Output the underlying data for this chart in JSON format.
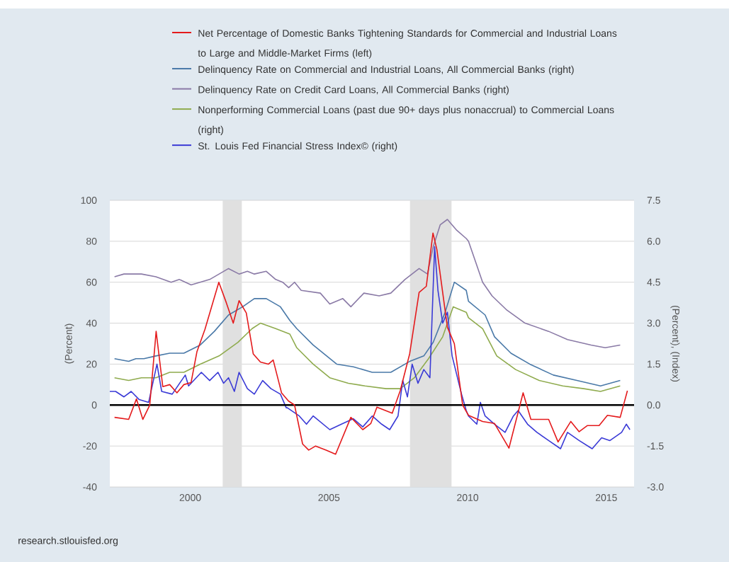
{
  "chart_data": {
    "type": "line",
    "ylabel": "(Percent)",
    "y2label": "(Percent), (Index)",
    "xlim": [
      1997.1,
      2016.0
    ],
    "xticks": [
      2000,
      2005,
      2010,
      2015
    ],
    "ylim": [
      -40,
      100
    ],
    "yticks": [
      -40,
      -20,
      0,
      20,
      40,
      60,
      80,
      100
    ],
    "y2lim": [
      -3.0,
      7.5
    ],
    "y2ticks": [
      {
        "value": -3.0,
        "label": "-3.0"
      },
      {
        "value": -1.5,
        "label": "-1.5"
      },
      {
        "value": 0.0,
        "label": "0.0"
      },
      {
        "value": 1.5,
        "label": "1.5"
      },
      {
        "value": 3.0,
        "label": "3.0"
      },
      {
        "value": 4.5,
        "label": "4.5"
      },
      {
        "value": 6.0,
        "label": "6.0"
      },
      {
        "value": 7.5,
        "label": "7.5"
      }
    ],
    "grid": "y",
    "legend": "top",
    "series": [
      {
        "name": "Net Percentage of Domestic Banks Tightening Standards for Commercial and Industrial Loans to Large and Middle-Market Firms (left)",
        "color": "#e41a1c",
        "x": [
          1997.27,
          1997.78,
          1998.06,
          1998.29,
          1998.54,
          1998.77,
          1999.01,
          1999.26,
          1999.52,
          1999.77,
          2000.03,
          2000.24,
          2000.53,
          2001.03,
          2001.3,
          2001.55,
          2001.76,
          2002.02,
          2002.27,
          2002.53,
          2002.82,
          2002.99,
          2003.29,
          2003.54,
          2003.76,
          2004.05,
          2004.27,
          2004.52,
          2004.9,
          2005.24,
          2005.79,
          2006.22,
          2006.51,
          2006.73,
          2007.28,
          2007.57,
          2007.91,
          2008.25,
          2008.51,
          2008.75,
          2008.89,
          2009.27,
          2009.52,
          2009.82,
          2010.03,
          2010.54,
          2010.97,
          2011.49,
          2012.0,
          2012.28,
          2012.92,
          2013.26,
          2013.72,
          2014.02,
          2014.32,
          2014.74,
          2015.04,
          2015.5,
          2015.76
        ],
        "values": [
          -6,
          -7,
          3,
          -7,
          0,
          36,
          9,
          10,
          6,
          10,
          11,
          26,
          37,
          60,
          50,
          40,
          51,
          45,
          25,
          21,
          20,
          22,
          6,
          2,
          0,
          -19,
          -22,
          -20,
          -22,
          -24,
          -6,
          -12,
          -9,
          -1,
          -4,
          7,
          25,
          55,
          58,
          84,
          76,
          38,
          30,
          0,
          -5,
          -8,
          -9,
          -21,
          6,
          -7,
          -7,
          -18,
          -8,
          -13,
          -10,
          -10,
          -5,
          -6,
          7
        ]
      },
      {
        "name": "Delinquency Rate on Commercial and Industrial Loans, All Commercial Banks (right)",
        "color": "#4a79a8",
        "axis": "y2",
        "x": [
          1997.27,
          1997.78,
          1998.04,
          1998.33,
          1998.76,
          1999.26,
          1999.77,
          2000.36,
          2000.87,
          2001.38,
          2001.89,
          2002.31,
          2002.74,
          2003.25,
          2003.59,
          2003.84,
          2004.43,
          2005.28,
          2005.88,
          2006.56,
          2007.23,
          2007.91,
          2008.42,
          2008.76,
          2009.19,
          2009.52,
          2009.95,
          2010.03,
          2010.63,
          2010.97,
          2011.56,
          2012.24,
          2013.09,
          2013.94,
          2014.79,
          2015.5
        ],
        "values": [
          1.7,
          1.6,
          1.7,
          1.7,
          1.8,
          1.9,
          1.9,
          2.2,
          2.7,
          3.3,
          3.6,
          3.9,
          3.9,
          3.6,
          3.1,
          2.8,
          2.2,
          1.5,
          1.4,
          1.2,
          1.2,
          1.6,
          1.8,
          2.3,
          3.4,
          4.5,
          4.2,
          3.8,
          3.3,
          2.5,
          1.9,
          1.5,
          1.1,
          0.9,
          0.7,
          0.9
        ]
      },
      {
        "name": "Delinquency Rate on Credit Card Loans, All Commercial Banks (right)",
        "color": "#8a7aa6",
        "axis": "y2",
        "x": [
          1997.27,
          1997.61,
          1998.24,
          1998.76,
          1999.31,
          1999.61,
          2000.03,
          2000.7,
          2001.38,
          2001.76,
          2002.06,
          2002.31,
          2002.74,
          2003.08,
          2003.33,
          2003.55,
          2003.76,
          2004.0,
          2004.69,
          2005.03,
          2005.5,
          2005.79,
          2006.26,
          2006.81,
          2007.23,
          2007.74,
          2008.25,
          2008.55,
          2008.76,
          2009.01,
          2009.27,
          2009.61,
          2009.95,
          2010.03,
          2010.54,
          2010.88,
          2011.39,
          2012.07,
          2012.92,
          2013.6,
          2014.45,
          2014.96,
          2015.5
        ],
        "values": [
          4.7,
          4.8,
          4.8,
          4.7,
          4.5,
          4.6,
          4.4,
          4.6,
          5.0,
          4.8,
          4.9,
          4.8,
          4.9,
          4.6,
          4.5,
          4.3,
          4.5,
          4.2,
          4.1,
          3.7,
          3.9,
          3.6,
          4.1,
          4.0,
          4.1,
          4.6,
          5.0,
          4.8,
          5.8,
          6.6,
          6.8,
          6.4,
          6.1,
          6.0,
          4.5,
          4.0,
          3.5,
          3.0,
          2.7,
          2.4,
          2.2,
          2.1,
          2.2
        ]
      },
      {
        "name": "Nonperforming Commercial Loans (past due 90+ days plus nonaccrual) to Commercial Loans (right)",
        "color": "#8fab4e",
        "axis": "y2",
        "x": [
          1997.27,
          1997.78,
          1998.24,
          1998.76,
          1999.26,
          1999.77,
          2000.36,
          2001.04,
          2001.72,
          2002.23,
          2002.53,
          2003.08,
          2003.59,
          2003.84,
          2004.43,
          2005.03,
          2005.7,
          2006.3,
          2007.06,
          2007.57,
          2008.08,
          2008.59,
          2009.1,
          2009.48,
          2009.95,
          2010.03,
          2010.54,
          2011.05,
          2011.73,
          2012.58,
          2013.43,
          2014.19,
          2014.79,
          2015.5
        ],
        "values": [
          1.0,
          0.9,
          1.0,
          1.0,
          1.2,
          1.2,
          1.5,
          1.8,
          2.3,
          2.8,
          3.0,
          2.8,
          2.6,
          2.1,
          1.5,
          1.0,
          0.8,
          0.7,
          0.6,
          0.6,
          1.0,
          1.7,
          2.5,
          3.6,
          3.4,
          3.2,
          2.8,
          1.8,
          1.3,
          0.9,
          0.7,
          0.6,
          0.5,
          0.7
        ]
      },
      {
        "name": "St. Louis Fed Financial Stress Index© (right)",
        "color": "#3a3ad6",
        "axis": "y2",
        "x": [
          1997.1,
          1997.31,
          1997.61,
          1997.87,
          1998.16,
          1998.5,
          1998.8,
          1998.97,
          1999.35,
          1999.82,
          1999.94,
          2000.4,
          2000.7,
          2001.0,
          2001.2,
          2001.38,
          2001.59,
          2001.76,
          2002.06,
          2002.31,
          2002.61,
          2002.91,
          2003.25,
          2003.46,
          2003.5,
          2003.93,
          2004.19,
          2004.43,
          2005.03,
          2005.45,
          2005.88,
          2006.22,
          2006.56,
          2006.9,
          2007.19,
          2007.49,
          2007.66,
          2007.83,
          2008.0,
          2008.21,
          2008.42,
          2008.64,
          2008.81,
          2008.93,
          2009.1,
          2009.27,
          2009.44,
          2009.78,
          2009.95,
          2010.03,
          2010.33,
          2010.46,
          2010.63,
          2010.97,
          2011.35,
          2011.65,
          2011.82,
          2012.16,
          2012.5,
          2012.92,
          2013.35,
          2013.6,
          2014.02,
          2014.49,
          2014.83,
          2015.13,
          2015.55,
          2015.72,
          2015.85
        ],
        "values": [
          0.5,
          0.5,
          0.3,
          0.5,
          0.2,
          0.1,
          1.5,
          0.5,
          0.4,
          1.1,
          0.7,
          1.2,
          0.9,
          1.2,
          0.8,
          1.0,
          0.5,
          1.2,
          0.6,
          0.4,
          0.9,
          0.6,
          0.4,
          -0.1,
          -0.1,
          -0.4,
          -0.7,
          -0.4,
          -0.9,
          -0.7,
          -0.5,
          -0.8,
          -0.4,
          -0.7,
          -0.9,
          -0.4,
          0.9,
          0.3,
          1.5,
          0.8,
          1.3,
          1.0,
          5.8,
          4.2,
          3.0,
          3.4,
          1.8,
          0.4,
          -0.2,
          -0.4,
          -0.7,
          0.1,
          -0.4,
          -0.7,
          -1.0,
          -0.4,
          -0.2,
          -0.7,
          -1.0,
          -1.3,
          -1.6,
          -1.0,
          -1.3,
          -1.6,
          -1.2,
          -1.3,
          -1.0,
          -0.7,
          -0.9
        ]
      }
    ],
    "ref_lines": [
      {
        "axis": "y",
        "value": 0,
        "color": "#000000"
      }
    ],
    "bands": [
      {
        "axis": "x",
        "from": 2001.17,
        "to": 2001.86,
        "color": "#e0e0e0"
      },
      {
        "axis": "x",
        "from": 2007.92,
        "to": 2009.42,
        "color": "#e0e0e0"
      }
    ],
    "annotations": [
      "research.stlouisfed.org"
    ]
  }
}
